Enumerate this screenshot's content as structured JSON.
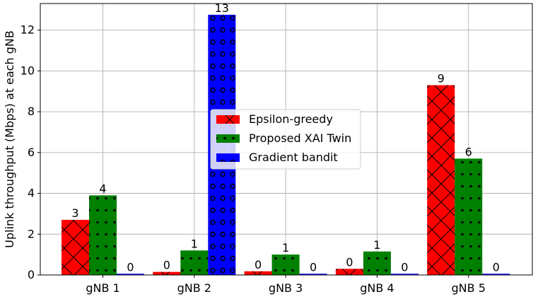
{
  "chart_data": {
    "type": "bar",
    "title": "",
    "xlabel": "",
    "ylabel": "Uplink throughput (Mbps) at each gNB",
    "categories": [
      "gNB 1",
      "gNB 2",
      "gNB 3",
      "gNB 4",
      "gNB 5"
    ],
    "ylim": [
      0,
      13.3
    ],
    "yticks": [
      0,
      2,
      4,
      6,
      8,
      10,
      12
    ],
    "grid": true,
    "legend_position": "center",
    "series": [
      {
        "name": "Epsilon-greedy",
        "color": "#ff0000",
        "hatch": "crosshatch",
        "values": [
          2.7,
          0.15,
          0.18,
          0.3,
          9.3
        ],
        "labels": [
          "3",
          "0",
          "0",
          "0",
          "9"
        ]
      },
      {
        "name": "Proposed XAI Twin",
        "color": "#008000",
        "hatch": "dots",
        "values": [
          3.9,
          1.2,
          1.0,
          1.15,
          5.7
        ],
        "labels": [
          "4",
          "1",
          "1",
          "1",
          "6"
        ]
      },
      {
        "name": "Gradient bandit",
        "color": "#0000ff",
        "hatch": "rings",
        "values": [
          0.06,
          12.75,
          0.06,
          0.06,
          0.06
        ],
        "labels": [
          "0",
          "13",
          "0",
          "0",
          "0"
        ]
      }
    ]
  }
}
